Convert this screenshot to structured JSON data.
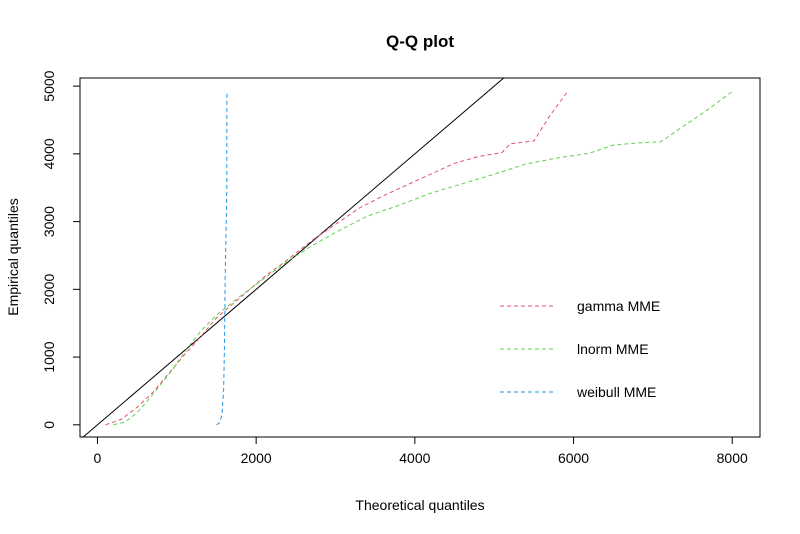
{
  "chart_data": {
    "type": "line",
    "title": "Q-Q plot",
    "xlabel": "Theoretical quantiles",
    "ylabel": "Empirical quantiles",
    "xlim": [
      -220,
      8350
    ],
    "ylim": [
      -180,
      5120
    ],
    "xticks": [
      0,
      2000,
      4000,
      6000,
      8000
    ],
    "yticks": [
      0,
      1000,
      2000,
      3000,
      4000,
      5000
    ],
    "xtick_labels": [
      "0",
      "2000",
      "4000",
      "6000",
      "8000"
    ],
    "ytick_labels": [
      "0",
      "1000",
      "2000",
      "3000",
      "4000",
      "5000"
    ],
    "reference_line": {
      "slope": 1,
      "intercept": 0,
      "color": "#000000"
    },
    "legend_position": "bottom-right",
    "series": [
      {
        "name": "gamma MME",
        "color": "#DF536B",
        "dash": "dashed",
        "points": [
          [
            100,
            0
          ],
          [
            300,
            80
          ],
          [
            500,
            260
          ],
          [
            700,
            480
          ],
          [
            900,
            760
          ],
          [
            1100,
            1040
          ],
          [
            1300,
            1300
          ],
          [
            1500,
            1580
          ],
          [
            1800,
            1880
          ],
          [
            2100,
            2180
          ],
          [
            2400,
            2440
          ],
          [
            2700,
            2720
          ],
          [
            3000,
            2960
          ],
          [
            3300,
            3200
          ],
          [
            3600,
            3380
          ],
          [
            3900,
            3540
          ],
          [
            4200,
            3700
          ],
          [
            4500,
            3860
          ],
          [
            4800,
            3960
          ],
          [
            5100,
            4020
          ],
          [
            5200,
            4150
          ],
          [
            5500,
            4190
          ],
          [
            5700,
            4560
          ],
          [
            5930,
            4930
          ]
        ]
      },
      {
        "name": "lnorm MME",
        "color": "#61D04F",
        "dash": "dashed",
        "points": [
          [
            200,
            0
          ],
          [
            350,
            40
          ],
          [
            500,
            180
          ],
          [
            650,
            380
          ],
          [
            800,
            600
          ],
          [
            950,
            820
          ],
          [
            1100,
            1080
          ],
          [
            1300,
            1380
          ],
          [
            1500,
            1620
          ],
          [
            1800,
            1900
          ],
          [
            2100,
            2160
          ],
          [
            2400,
            2420
          ],
          [
            2700,
            2640
          ],
          [
            3000,
            2840
          ],
          [
            3400,
            3080
          ],
          [
            3800,
            3240
          ],
          [
            4200,
            3420
          ],
          [
            4600,
            3560
          ],
          [
            5000,
            3700
          ],
          [
            5400,
            3850
          ],
          [
            5800,
            3940
          ],
          [
            6200,
            4010
          ],
          [
            6500,
            4130
          ],
          [
            6800,
            4160
          ],
          [
            7100,
            4180
          ],
          [
            7400,
            4420
          ],
          [
            7700,
            4660
          ],
          [
            8000,
            4920
          ]
        ]
      },
      {
        "name": "weibull MME",
        "color": "#2297E6",
        "dash": "dashed",
        "points": [
          [
            1500,
            0
          ],
          [
            1540,
            30
          ],
          [
            1570,
            150
          ],
          [
            1590,
            500
          ],
          [
            1600,
            1100
          ],
          [
            1605,
            1600
          ],
          [
            1610,
            2200
          ],
          [
            1620,
            2800
          ],
          [
            1625,
            3100
          ],
          [
            1630,
            3500
          ],
          [
            1630,
            4200
          ],
          [
            1632,
            4920
          ]
        ]
      }
    ]
  }
}
